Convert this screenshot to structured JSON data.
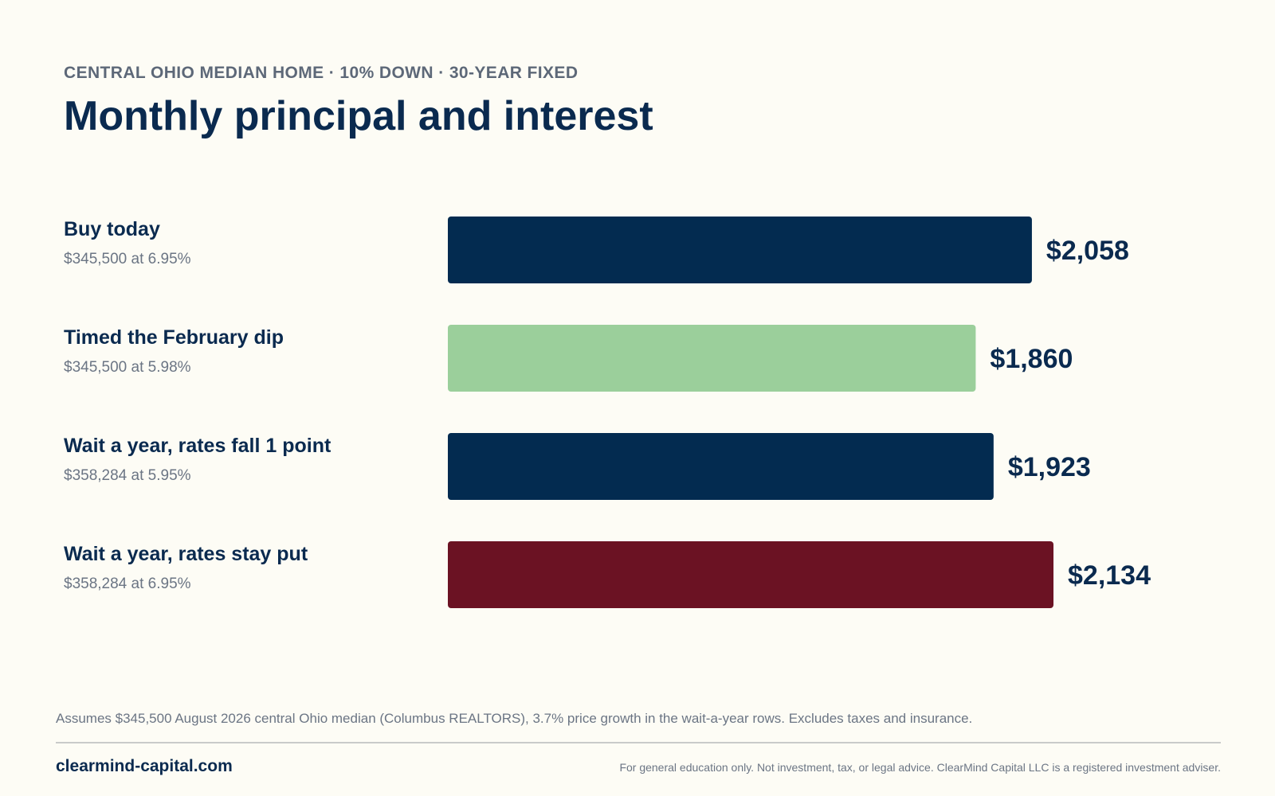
{
  "header": {
    "kicker": "CENTRAL OHIO MEDIAN HOME · 10% DOWN · 30-YEAR FIXED",
    "title": "Monthly principal and interest"
  },
  "chart_data": {
    "type": "bar",
    "orientation": "horizontal",
    "title": "Monthly principal and interest",
    "categories": [
      "Buy today",
      "Timed the February dip",
      "Wait a year, rates fall 1 point",
      "Wait a year, rates stay put"
    ],
    "subtitles": [
      "$345,500 at 6.95%",
      "$345,500 at 5.98%",
      "$358,284 at 5.95%",
      "$358,284 at 6.95%"
    ],
    "values": [
      2058,
      1860,
      1923,
      2134
    ],
    "value_labels": [
      "$2,058",
      "$1,860",
      "$1,923",
      "$2,134"
    ],
    "colors": [
      "#032b50",
      "#9bcf9b",
      "#032b50",
      "#6b1223"
    ],
    "xlim": [
      0,
      2134
    ],
    "grid": false,
    "legend": "none"
  },
  "footer": {
    "note": "Assumes $345,500 August 2026 central Ohio median (Columbus REALTORS), 3.7% price growth in the wait-a-year rows. Excludes taxes and insurance.",
    "site": "clearmind-capital.com",
    "disclaimer": "For general education only. Not investment, tax, or legal advice. ClearMind Capital LLC is a registered investment adviser."
  }
}
